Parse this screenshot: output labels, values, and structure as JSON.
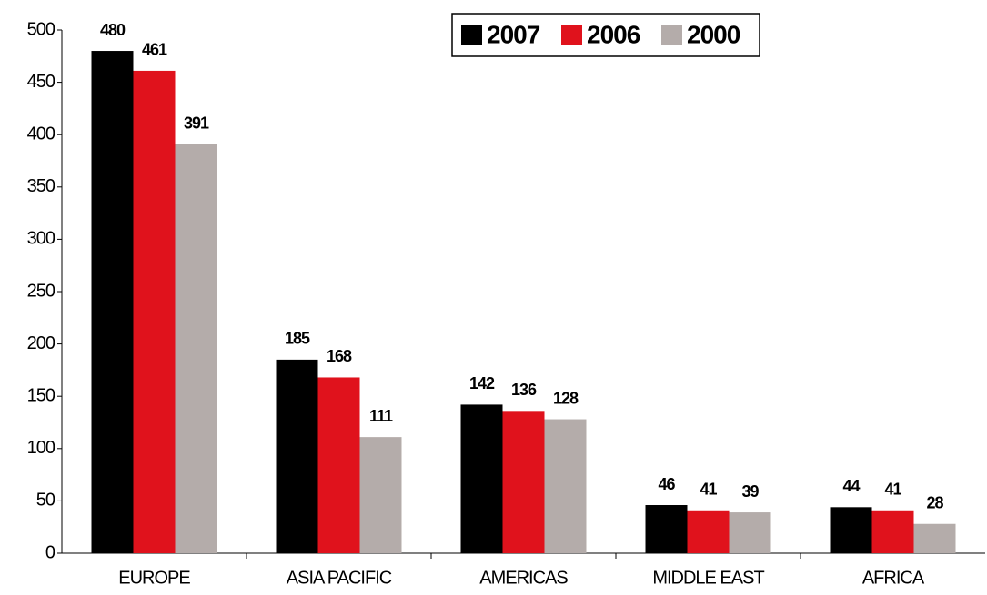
{
  "chart_data": {
    "type": "bar",
    "categories": [
      "EUROPE",
      "ASIA PACIFIC",
      "AMERICAS",
      "MIDDLE EAST",
      "AFRICA"
    ],
    "series": [
      {
        "name": "2007",
        "color": "#000000",
        "values": [
          480,
          185,
          142,
          46,
          44
        ]
      },
      {
        "name": "2006",
        "color": "#e0121c",
        "values": [
          461,
          168,
          136,
          41,
          41
        ]
      },
      {
        "name": "2000",
        "color": "#b4acaa",
        "values": [
          391,
          111,
          128,
          39,
          28
        ]
      }
    ],
    "ylim": [
      0,
      500
    ],
    "yticks": [
      0,
      50,
      100,
      150,
      200,
      250,
      300,
      350,
      400,
      450,
      500
    ],
    "grid": false,
    "legend": "top"
  }
}
